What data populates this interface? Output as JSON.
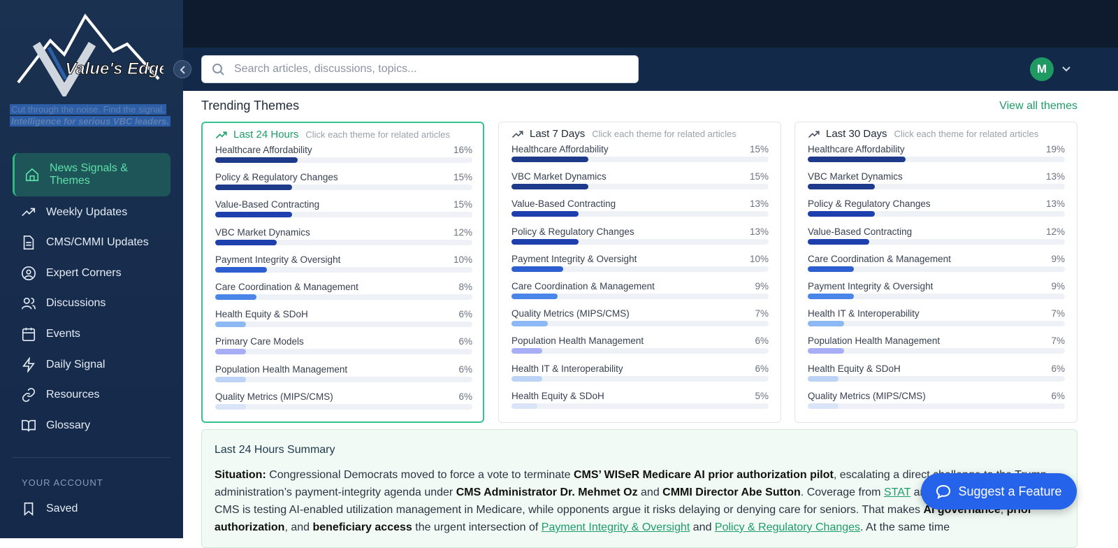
{
  "brand": {
    "logo_text": "Value's Edge",
    "tagline": "Cut through the noise. Find the signal.",
    "subtagline": "Intelligence for serious VBC leaders."
  },
  "nav": {
    "items": [
      "News Signals & Themes",
      "Weekly Updates",
      "CMS/CMMI Updates",
      "Expert Corners",
      "Discussions",
      "Events",
      "Daily Signal",
      "Resources",
      "Glossary"
    ],
    "account_heading": "YOUR ACCOUNT",
    "account_items": [
      "Saved"
    ]
  },
  "header": {
    "search_placeholder": "Search articles, discussions, topics...",
    "avatar": "M"
  },
  "themes": {
    "title": "Trending Themes",
    "view_all": "View all themes",
    "periods": [
      {
        "title": "Last 24 Hours",
        "hint": "Click each theme for related articles",
        "items": [
          {
            "name": "Healthcare Affordability",
            "share": 16,
            "share_label": "16%"
          },
          {
            "name": "Policy & Regulatory Changes",
            "share": 15,
            "share_label": "15%"
          },
          {
            "name": "Value-Based Contracting",
            "share": 15,
            "share_label": "15%"
          },
          {
            "name": "VBC Market Dynamics",
            "share": 12,
            "share_label": "12%"
          },
          {
            "name": "Payment Integrity & Oversight",
            "share": 10,
            "share_label": "10%"
          },
          {
            "name": "Care Coordination & Management",
            "share": 8,
            "share_label": "8%"
          },
          {
            "name": "Health Equity & SDoH",
            "share": 6,
            "share_label": "6%"
          },
          {
            "name": "Primary Care Models",
            "share": 6,
            "share_label": "6%"
          },
          {
            "name": "Population Health Management",
            "share": 6,
            "share_label": "6%"
          },
          {
            "name": "Quality Metrics (MIPS/CMS)",
            "share": 6,
            "share_label": "6%"
          }
        ]
      },
      {
        "title": "Last 7 Days",
        "hint": "Click each theme for related articles",
        "items": [
          {
            "name": "Healthcare Affordability",
            "share": 15,
            "share_label": "15%"
          },
          {
            "name": "VBC Market Dynamics",
            "share": 15,
            "share_label": "15%"
          },
          {
            "name": "Value-Based Contracting",
            "share": 13,
            "share_label": "13%"
          },
          {
            "name": "Policy & Regulatory Changes",
            "share": 13,
            "share_label": "13%"
          },
          {
            "name": "Payment Integrity & Oversight",
            "share": 10,
            "share_label": "10%"
          },
          {
            "name": "Care Coordination & Management",
            "share": 9,
            "share_label": "9%"
          },
          {
            "name": "Quality Metrics (MIPS/CMS)",
            "share": 7,
            "share_label": "7%"
          },
          {
            "name": "Population Health Management",
            "share": 6,
            "share_label": "6%"
          },
          {
            "name": "Health IT & Interoperability",
            "share": 6,
            "share_label": "6%"
          },
          {
            "name": "Health Equity & SDoH",
            "share": 5,
            "share_label": "5%"
          }
        ]
      },
      {
        "title": "Last 30 Days",
        "hint": "Click each theme for related articles",
        "items": [
          {
            "name": "Healthcare Affordability",
            "share": 19,
            "share_label": "19%"
          },
          {
            "name": "VBC Market Dynamics",
            "share": 13,
            "share_label": "13%"
          },
          {
            "name": "Policy & Regulatory Changes",
            "share": 13,
            "share_label": "13%"
          },
          {
            "name": "Value-Based Contracting",
            "share": 12,
            "share_label": "12%"
          },
          {
            "name": "Care Coordination & Management",
            "share": 9,
            "share_label": "9%"
          },
          {
            "name": "Payment Integrity & Oversight",
            "share": 9,
            "share_label": "9%"
          },
          {
            "name": "Health IT & Interoperability",
            "share": 7,
            "share_label": "7%"
          },
          {
            "name": "Population Health Management",
            "share": 7,
            "share_label": "7%"
          },
          {
            "name": "Health Equity & SDoH",
            "share": 6,
            "share_label": "6%"
          },
          {
            "name": "Quality Metrics (MIPS/CMS)",
            "share": 6,
            "share_label": "6%"
          }
        ]
      }
    ]
  },
  "summary": {
    "title": "Last 24 Hours Summary",
    "segments": [
      {
        "text": "Situation:",
        "style": "bold"
      },
      {
        "text": " Congressional Democrats moved to force a vote to terminate "
      },
      {
        "text": "CMS’ WISeR Medicare AI prior authorization pilot",
        "style": "bold"
      },
      {
        "text": ", escalating a direct challenge to the Trump administration’s payment-integrity agenda under "
      },
      {
        "text": "CMS Administrator Dr. Mehmet Oz",
        "style": "bold"
      },
      {
        "text": " and "
      },
      {
        "text": "CMMI Director Abe Sutton",
        "style": "bold"
      },
      {
        "text": ". Coverage from "
      },
      {
        "text": "STAT",
        "style": "link"
      },
      {
        "text": " and WISeR as a flashpoint: CMS is testing AI-enabled utilization management in Medicare, while opponents argue it risks delaying or denying care for seniors. That makes "
      },
      {
        "text": "AI governance",
        "style": "bold"
      },
      {
        "text": ", "
      },
      {
        "text": "prior authorization",
        "style": "bold"
      },
      {
        "text": ", and "
      },
      {
        "text": "beneficiary access",
        "style": "bold"
      },
      {
        "text": " the urgent intersection of "
      },
      {
        "text": "Payment Integrity & Oversight",
        "style": "link"
      },
      {
        "text": " and "
      },
      {
        "text": "Policy & Regulatory Changes",
        "style": "link"
      },
      {
        "text": ". At the same time"
      }
    ]
  },
  "feature_button": "Suggest a Feature"
}
